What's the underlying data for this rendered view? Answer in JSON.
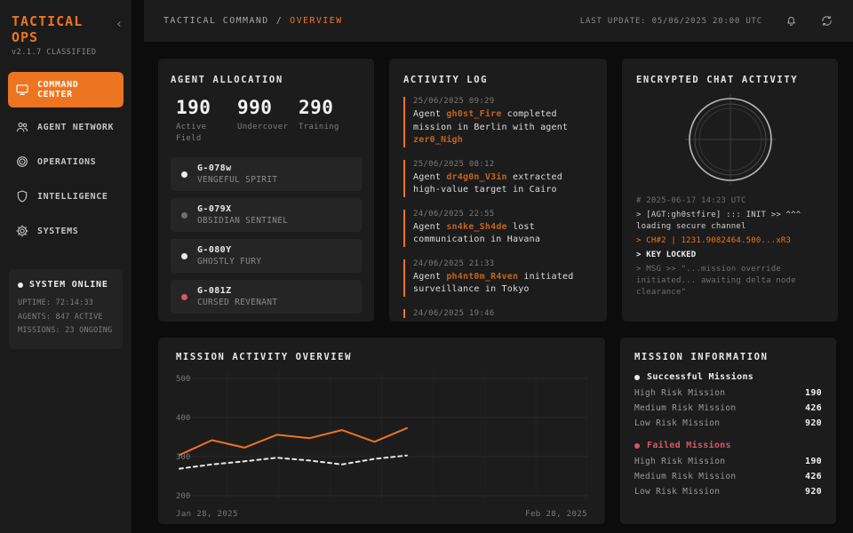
{
  "app": {
    "title": "TACTICAL OPS",
    "version": "v2.1.7 CLASSIFIED"
  },
  "colors": {
    "accent": "#ED7420",
    "accent_dim": "#C2631F",
    "online": "#EDEDED",
    "offline": "#6E6E6E",
    "danger": "#D95763"
  },
  "topbar": {
    "breadcrumb_root": "TACTICAL COMMAND",
    "breadcrumb_sep": "/",
    "breadcrumb_current": "OVERVIEW",
    "last_update": "LAST UPDATE: 05/06/2025 20:00 UTC"
  },
  "sidebar": {
    "collapse_glyph": "‹",
    "items": [
      {
        "label": "COMMAND CENTER",
        "icon": "monitor-icon",
        "active": true
      },
      {
        "label": "AGENT NETWORK",
        "icon": "users-icon",
        "active": false
      },
      {
        "label": "OPERATIONS",
        "icon": "target-icon",
        "active": false
      },
      {
        "label": "INTELLIGENCE",
        "icon": "shield-icon",
        "active": false
      },
      {
        "label": "SYSTEMS",
        "icon": "gear-icon",
        "active": false
      }
    ],
    "status": {
      "title": "SYSTEM ONLINE",
      "dot_color": "#EDEDED",
      "lines": [
        "UPTIME: 72:14:33",
        "AGENTS: 847 ACTIVE",
        "MISSIONS: 23 ONGOING"
      ]
    }
  },
  "agent_allocation": {
    "title": "AGENT ALLOCATION",
    "stats": [
      {
        "value": "190",
        "label": "Active Field"
      },
      {
        "value": "990",
        "label": "Undercover"
      },
      {
        "value": "290",
        "label": "Training"
      }
    ],
    "agents": [
      {
        "code": "G-078w",
        "name": "VENGEFUL SPIRIT",
        "dot": "#EDEDED"
      },
      {
        "code": "G-079X",
        "name": "OBSIDIAN SENTINEL",
        "dot": "#6E6E6E"
      },
      {
        "code": "G-080Y",
        "name": "GHOSTLY FURY",
        "dot": "#EDEDED"
      },
      {
        "code": "G-081Z",
        "name": "CURSED REVENANT",
        "dot": "#D95763"
      }
    ]
  },
  "activity_log": {
    "title": "ACTIVITY LOG",
    "entries": [
      {
        "time": "25/06/2025 09:29",
        "segments": [
          {
            "text": "Agent "
          },
          {
            "text": "gh0st_Fire",
            "highlight": true
          },
          {
            "text": " completed mission in Berlin with agent "
          },
          {
            "text": "zer0_Nigh",
            "highlight": true
          }
        ]
      },
      {
        "time": "25/06/2025 08:12",
        "segments": [
          {
            "text": "Agent "
          },
          {
            "text": "dr4g0n_V3in",
            "highlight": true
          },
          {
            "text": " extracted high-value target in Cairo"
          }
        ]
      },
      {
        "time": "24/06/2025 22:55",
        "segments": [
          {
            "text": "Agent "
          },
          {
            "text": "sn4ke_Sh4de",
            "highlight": true
          },
          {
            "text": " lost communication in Havana"
          }
        ]
      },
      {
        "time": "24/06/2025 21:33",
        "segments": [
          {
            "text": "Agent "
          },
          {
            "text": "ph4nt0m_R4ven",
            "highlight": true
          },
          {
            "text": " initiated surveillance in Tokyo"
          }
        ]
      },
      {
        "time": "24/06/2025 19:46",
        "segments": []
      }
    ]
  },
  "encrypted_chat": {
    "title": "ENCRYPTED CHAT ACTIVITY",
    "terminal": [
      {
        "text": "# 2025-06-17 14:23 UTC",
        "style": "muted"
      },
      {
        "text": "> [AGT:gh0stfire] ::: INIT >> ^^^ loading secure channel",
        "style": "light"
      },
      {
        "text": "> CH#2 | 1231.9082464.500...xR3",
        "style": "accent"
      },
      {
        "text": "> KEY LOCKED",
        "style": "bold"
      },
      {
        "text": "> MSG >> \"...mission override initiated... awaiting delta node clearance\"",
        "style": "muted"
      }
    ]
  },
  "chart_data": {
    "type": "line",
    "title": "MISSION ACTIVITY OVERVIEW",
    "x_start_label": "Jan 28, 2025",
    "x_end_label": "Feb 28, 2025",
    "ylim": [
      200,
      500
    ],
    "yticks": [
      500,
      400,
      300,
      200
    ],
    "grid": true,
    "legend": "none",
    "data_width_fraction": 0.57,
    "series": [
      {
        "name": "primary",
        "line_style": "solid",
        "color": "#ED7420",
        "values": [
          304,
          342,
          323,
          356,
          347,
          368,
          338,
          373
        ]
      },
      {
        "name": "secondary",
        "line_style": "dashed",
        "color": "#E8E8E8",
        "values": [
          269,
          280,
          288,
          297,
          290,
          280,
          294,
          303
        ]
      }
    ]
  },
  "mission_information": {
    "title": "MISSION INFORMATION",
    "sections": [
      {
        "label": "Successful Missions",
        "color": "#EDEDED",
        "rows": [
          {
            "label": "High Risk Mission",
            "value": "190"
          },
          {
            "label": "Medium Risk Mission",
            "value": "426"
          },
          {
            "label": "Low Risk Mission",
            "value": "920"
          }
        ]
      },
      {
        "label": "Failed Missions",
        "color": "#D95763",
        "rows": [
          {
            "label": "High Risk Mission",
            "value": "190"
          },
          {
            "label": "Medium Risk Mission",
            "value": "426"
          },
          {
            "label": "Low Risk Mission",
            "value": "920"
          }
        ]
      }
    ]
  }
}
